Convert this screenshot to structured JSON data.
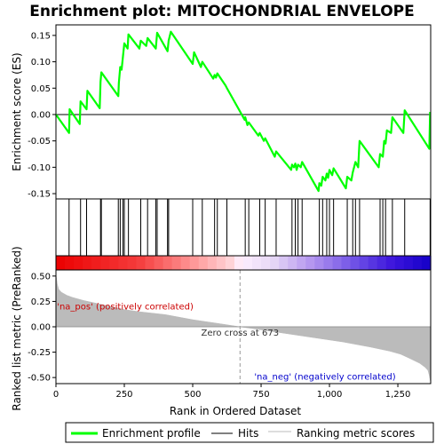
{
  "chart_data": {
    "type": "line",
    "title": "Enrichment plot: MITOCHONDRIAL ENVELOPE",
    "xlabel": "Rank in Ordered Dataset",
    "x_range": [
      0,
      1370
    ],
    "x_ticks": [
      0,
      250,
      500,
      750,
      1000,
      1250
    ],
    "x_tick_labels": [
      "0",
      "250",
      "500",
      "750",
      "1,000",
      "1,250"
    ],
    "top_panel": {
      "ylabel": "Enrichment score (ES)",
      "ylim": [
        -0.16,
        0.17
      ],
      "y_ticks": [
        0.15,
        0.1,
        0.05,
        0.0,
        -0.05,
        -0.1,
        -0.15
      ],
      "y_tick_labels": [
        "0.15",
        "0.10",
        "0.05",
        "0.00",
        "-0.05",
        "-0.10",
        "-0.15"
      ],
      "series": [
        {
          "name": "Enrichment profile",
          "color": "#00ff00",
          "x": [
            0,
            48,
            50,
            87,
            90,
            112,
            115,
            160,
            163,
            166,
            228,
            230,
            235,
            240,
            245,
            250,
            262,
            265,
            305,
            310,
            330,
            335,
            365,
            370,
            408,
            412,
            420,
            500,
            505,
            530,
            535,
            575,
            580,
            585,
            590,
            620,
            625,
            690,
            692,
            700,
            705,
            740,
            745,
            760,
            765,
            800,
            805,
            860,
            863,
            870,
            875,
            880,
            885,
            895,
            900,
            960,
            963,
            970,
            975,
            985,
            990,
            995,
            1000,
            1010,
            1015,
            1060,
            1065,
            1080,
            1085,
            1090,
            1095,
            1105,
            1110,
            1180,
            1185,
            1195,
            1200,
            1205,
            1210,
            1225,
            1230,
            1270,
            1275,
            1365,
            1368
          ],
          "y": [
            0.0,
            -0.035,
            0.01,
            -0.018,
            0.025,
            0.01,
            0.045,
            0.012,
            0.062,
            0.08,
            0.035,
            0.06,
            0.09,
            0.085,
            0.11,
            0.135,
            0.125,
            0.152,
            0.125,
            0.14,
            0.13,
            0.145,
            0.125,
            0.155,
            0.12,
            0.14,
            0.157,
            0.096,
            0.118,
            0.09,
            0.1,
            0.068,
            0.075,
            0.07,
            0.078,
            0.055,
            0.05,
            -0.01,
            -0.005,
            -0.02,
            -0.015,
            -0.04,
            -0.035,
            -0.05,
            -0.045,
            -0.08,
            -0.07,
            -0.105,
            -0.095,
            -0.1,
            -0.093,
            -0.105,
            -0.095,
            -0.1,
            -0.09,
            -0.145,
            -0.13,
            -0.135,
            -0.118,
            -0.125,
            -0.112,
            -0.12,
            -0.105,
            -0.115,
            -0.102,
            -0.14,
            -0.118,
            -0.125,
            -0.11,
            -0.1,
            -0.09,
            -0.1,
            -0.05,
            -0.1,
            -0.075,
            -0.08,
            -0.05,
            -0.055,
            -0.03,
            -0.035,
            -0.005,
            -0.035,
            0.008,
            -0.065,
            0.005
          ]
        }
      ]
    },
    "hits_panel": {
      "name": "Hits",
      "positions": [
        48,
        90,
        112,
        163,
        166,
        228,
        235,
        245,
        250,
        265,
        310,
        335,
        365,
        370,
        408,
        412,
        500,
        535,
        580,
        590,
        625,
        692,
        705,
        745,
        765,
        805,
        863,
        875,
        885,
        900,
        963,
        975,
        990,
        1000,
        1015,
        1065,
        1085,
        1095,
        1110,
        1185,
        1195,
        1205,
        1230,
        1275,
        1368
      ]
    },
    "bottom_panel": {
      "name": "Ranking metric scores",
      "ylabel": "Ranked list metric (PreRanked)",
      "ylim": [
        -0.56,
        0.56
      ],
      "y_ticks": [
        0.5,
        0.25,
        0.0,
        -0.25,
        -0.5
      ],
      "y_tick_labels": [
        "0.50",
        "0.25",
        "0.00",
        "-0.25",
        "-0.50"
      ],
      "color": "#bbbbbb",
      "curve_x": [
        0,
        5,
        10,
        20,
        40,
        60,
        100,
        150,
        200,
        250,
        300,
        400,
        500,
        600,
        673,
        750,
        850,
        950,
        1050,
        1150,
        1220,
        1260,
        1300,
        1330,
        1350,
        1360,
        1365,
        1370
      ],
      "curve_y": [
        0.52,
        0.42,
        0.37,
        0.34,
        0.31,
        0.29,
        0.26,
        0.23,
        0.2,
        0.17,
        0.15,
        0.12,
        0.07,
        0.03,
        0.0,
        -0.03,
        -0.07,
        -0.11,
        -0.15,
        -0.2,
        -0.24,
        -0.27,
        -0.32,
        -0.36,
        -0.4,
        -0.43,
        -0.48,
        -0.55
      ],
      "zero_cross": 673,
      "zero_cross_label": "Zero cross at 673",
      "pos_label": "'na_pos' (positively correlated)",
      "neg_label": "'na_neg' (negatively correlated)"
    },
    "legend": [
      "Enrichment profile",
      "Hits",
      "Ranking metric scores"
    ],
    "colors": {
      "profile": "#00ff00",
      "hits": "#000000",
      "metric": "#bbbbbb",
      "pos_text": "#cc0000",
      "neg_text": "#0000cc"
    }
  }
}
